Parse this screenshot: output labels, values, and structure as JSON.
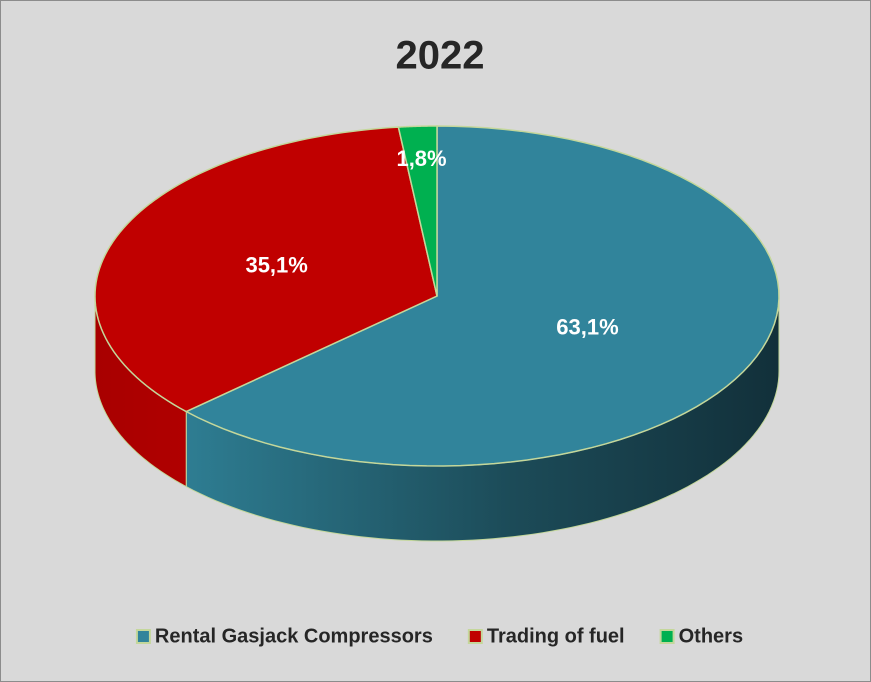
{
  "chart_data": {
    "type": "pie",
    "title": "2022",
    "categories": [
      "Rental Gasjack Compressors",
      "Trading of fuel",
      "Others"
    ],
    "values": [
      63.1,
      35.1,
      1.8
    ],
    "value_labels": [
      "63,1%",
      "35,1%",
      "1,8%"
    ],
    "colors": [
      "#31849b",
      "#c00000",
      "#00b050"
    ],
    "legend": "bottom"
  }
}
